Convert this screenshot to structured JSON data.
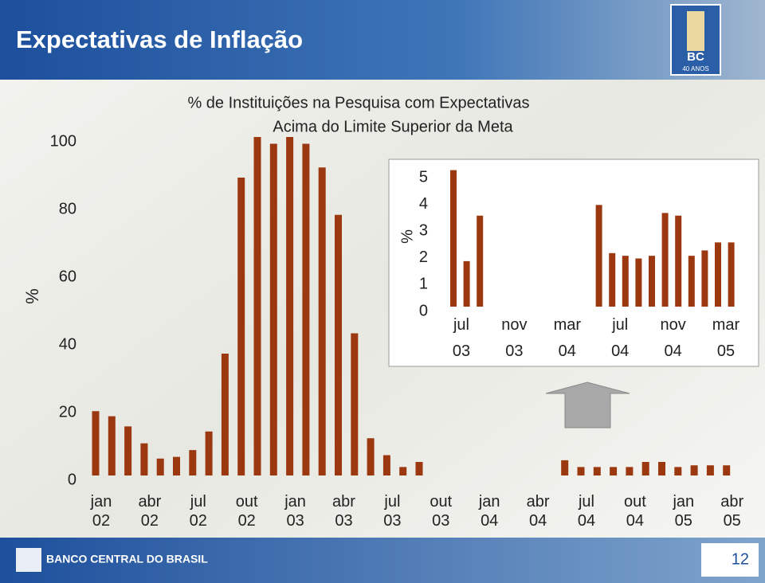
{
  "header": {
    "title": "Expectativas de Inflação"
  },
  "logo": {
    "text": "BC",
    "subtext": "40 ANOS"
  },
  "footer": {
    "brand": "BANCO CENTRAL DO BRASIL",
    "page": "12"
  },
  "chart_data": [
    {
      "type": "bar",
      "title": [
        "% de Instituições na Pesquisa com Expectativas",
        "Acima do Limite Superior da Meta"
      ],
      "y_label": "%",
      "categories": [
        "jan 02",
        null,
        null,
        "abr 02",
        null,
        null,
        "jul 02",
        null,
        null,
        "out 02",
        null,
        null,
        "jan 03",
        null,
        null,
        "abr 03",
        null,
        null,
        "jul 03",
        null,
        null,
        "out 03",
        null,
        null,
        "jan 04",
        null,
        null,
        "abr 04",
        null,
        null,
        "jul 04",
        null,
        null,
        "out 04",
        null,
        null,
        "jan 05",
        null,
        null,
        "abr 05"
      ],
      "values": [
        19,
        17.5,
        14.5,
        9.5,
        5,
        5.5,
        7.5,
        13,
        36,
        88,
        100,
        98,
        100,
        98,
        91,
        77,
        42,
        11,
        6,
        2.5,
        4,
        null,
        null,
        null,
        null,
        null,
        null,
        null,
        null,
        4.5,
        2.5,
        2.5,
        2.5,
        2.5,
        4,
        4,
        2.5,
        3,
        3,
        3
      ],
      "color": "#9c3810",
      "ylim": [
        0,
        100
      ],
      "yticks": [
        0,
        20,
        40,
        60,
        80,
        100
      ]
    },
    {
      "type": "bar",
      "y_label": "%",
      "categories": [
        "jul 03",
        null,
        null,
        null,
        "nov 03",
        null,
        null,
        null,
        "mar 04",
        null,
        null,
        null,
        "jul 04",
        null,
        null,
        null,
        "nov 04",
        null,
        null,
        null,
        "mar 05",
        null
      ],
      "values": [
        5.1,
        1.7,
        3.4,
        null,
        null,
        null,
        null,
        null,
        null,
        null,
        null,
        3.8,
        2.0,
        1.9,
        1.8,
        1.9,
        3.5,
        3.4,
        1.9,
        2.1,
        2.4,
        2.4
      ],
      "color": "#9c3810",
      "ylim": [
        0,
        5
      ],
      "yticks": [
        0,
        1,
        2,
        3,
        4,
        5
      ]
    }
  ]
}
